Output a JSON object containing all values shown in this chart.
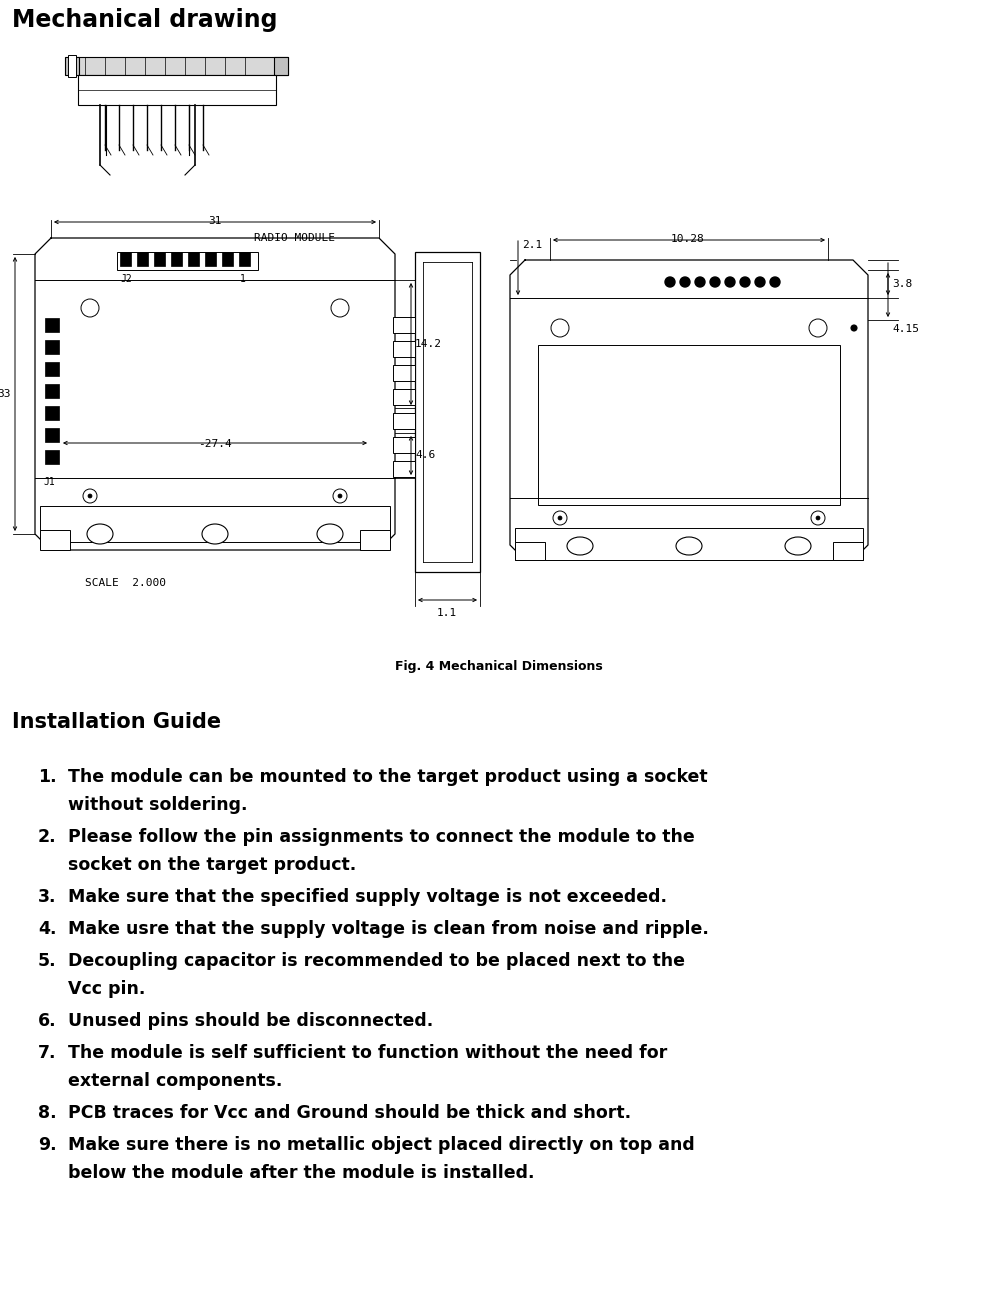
{
  "title": "Mechanical drawing",
  "fig_caption": "Fig. 4 Mechanical Dimensions",
  "section_title": "Installation Guide",
  "instructions": [
    [
      "1.",
      "The module can be mounted to the target product using a socket",
      "without soldering."
    ],
    [
      "2.",
      "Please follow the pin assignments to connect the module to the",
      "socket on the target product."
    ],
    [
      "3.",
      "Make sure that the specified supply voltage is not exceeded.",
      ""
    ],
    [
      "4.",
      "Make usre that the supply voltage is clean from noise and ripple.",
      ""
    ],
    [
      "5.",
      "Decoupling capacitor is recommended to be placed next to the",
      "Vcc pin."
    ],
    [
      "6.",
      "Unused pins should be disconnected.",
      ""
    ],
    [
      "7.",
      "The module is self sufficient to function without the need for",
      "external components."
    ],
    [
      "8.",
      "PCB traces for Vcc and Ground should be thick and short.",
      ""
    ],
    [
      "9.",
      "Make sure there is no metallic object placed directly on top and",
      "below the module after the module is installed."
    ]
  ],
  "bg_color": "#ffffff",
  "text_color": "#000000",
  "draw_color": "#000000",
  "title_fontsize": 17,
  "caption_fontsize": 9,
  "section_fontsize": 15,
  "body_fontsize": 12.5,
  "dim_fontsize": 8
}
